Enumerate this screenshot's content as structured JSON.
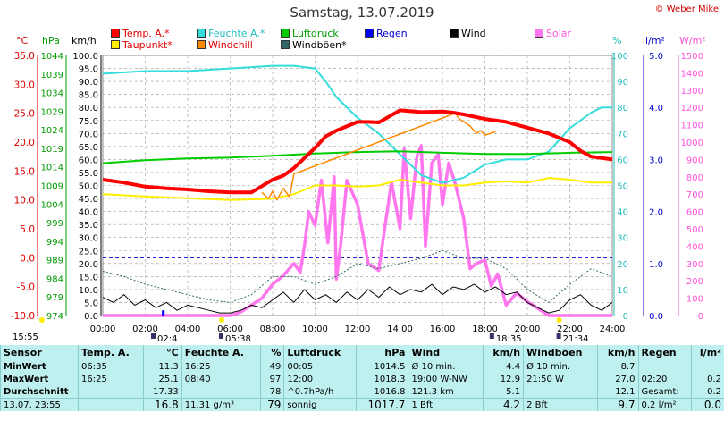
{
  "title": "Samstag, 13.07.2019",
  "credit": "© Weber Mike",
  "axis_headers": {
    "temp": "°C",
    "hpa": "hPa",
    "kmh": "km/h",
    "pct": "%",
    "rain": "l/m²",
    "solar": "W/m²"
  },
  "legend": [
    {
      "label": "Temp. A.*",
      "color": "#ff0000"
    },
    {
      "label": "Feuchte A.*",
      "color": "#33dddd"
    },
    {
      "label": "Luftdruck",
      "color": "#00cc00"
    },
    {
      "label": "Regen",
      "color": "#0000ff"
    },
    {
      "label": "Wind",
      "color": "#000000"
    },
    {
      "label": "Solar",
      "color": "#ff77ee"
    },
    {
      "label": "Taupunkt*",
      "color": "#ffee00"
    },
    {
      "label": "Windchill",
      "color": "#ff8800"
    },
    {
      "label": "Windböen*",
      "color": "#336666"
    }
  ],
  "chart_data": {
    "type": "line",
    "x_unit": "hours",
    "x_ticks": [
      "00:00",
      "02:00",
      "04:00",
      "06:00",
      "08:00",
      "10:00",
      "12:00",
      "14:00",
      "16:00",
      "18:00",
      "20:00",
      "22:00",
      "24:00"
    ],
    "axes": {
      "temp_c": {
        "ticks": [
          "35.0",
          "30.0",
          "25.0",
          "20.0",
          "15.0",
          "10.0",
          "5.0",
          "0.0",
          "-5.0",
          "-10.0"
        ],
        "range": [
          -10,
          35
        ],
        "color": "#dd0000"
      },
      "hpa": {
        "ticks": [
          "1044",
          "1039",
          "1034",
          "1029",
          "1024",
          "1019",
          "1014",
          "1009",
          "1004",
          "999",
          "994",
          "989",
          "984",
          "979",
          "974"
        ],
        "range": [
          974,
          1044
        ],
        "color": "#009900"
      },
      "kmh": {
        "ticks": [
          "100.0",
          "95.0",
          "90.0",
          "85.0",
          "80.0",
          "75.0",
          "70.0",
          "65.0",
          "60.0",
          "55.0",
          "50.0",
          "45.0",
          "40.0",
          "35.0",
          "30.0",
          "25.0",
          "20.0",
          "15.0",
          "10.0",
          "5.0",
          "0.0"
        ],
        "range": [
          0,
          100
        ],
        "color": "#000000"
      },
      "pct": {
        "ticks": [
          "100",
          "90",
          "80",
          "70",
          "60",
          "50",
          "40",
          "30",
          "20",
          "10",
          "0"
        ],
        "range": [
          0,
          100
        ],
        "color": "#22bbbb"
      },
      "rain": {
        "ticks": [
          "5.0",
          "4.0",
          "3.0",
          "2.0",
          "1.0",
          "0.0"
        ],
        "range": [
          0,
          5
        ],
        "color": "#0000cc"
      },
      "solar": {
        "ticks": [
          "1500",
          "1400",
          "1300",
          "1200",
          "1100",
          "1000",
          "900",
          "800",
          "700",
          "600",
          "500",
          "400",
          "300",
          "200",
          "100",
          "0"
        ],
        "range": [
          0,
          1500
        ],
        "color": "#ff55dd"
      }
    },
    "series": [
      {
        "name": "Temp. A.*",
        "axis": "temp_c",
        "x": [
          0,
          1,
          2,
          3,
          4,
          5,
          6,
          7,
          8,
          8.5,
          9,
          10,
          10.5,
          11,
          12,
          12.5,
          13,
          14,
          15,
          16,
          16.5,
          17,
          18,
          19,
          20,
          21,
          22,
          22.5,
          23,
          24
        ],
        "y": [
          13.5,
          13.0,
          12.3,
          12.0,
          11.8,
          11.5,
          11.3,
          11.3,
          13.5,
          14.2,
          15.5,
          19.0,
          21.0,
          22.0,
          23.5,
          23.5,
          23.4,
          25.5,
          25.2,
          25.3,
          25.1,
          24.8,
          24.0,
          23.5,
          22.5,
          21.5,
          20.0,
          18.5,
          17.5,
          17.0
        ]
      },
      {
        "name": "Feuchte A.*",
        "axis": "pct",
        "x": [
          0,
          2,
          4,
          6,
          8,
          9,
          10,
          10.5,
          11,
          12,
          13,
          14,
          15,
          16,
          17,
          18,
          19,
          20,
          21,
          22,
          23,
          23.5,
          24
        ],
        "y": [
          93,
          94,
          94,
          95,
          96,
          96,
          95,
          90,
          84,
          76,
          70,
          62,
          54,
          51,
          53,
          58,
          60,
          60,
          63,
          72,
          78,
          80,
          80
        ]
      },
      {
        "name": "Luftdruck",
        "axis": "hpa",
        "x": [
          0,
          2,
          4,
          6,
          8,
          10,
          12,
          14,
          16,
          18,
          20,
          22,
          24
        ],
        "y": [
          1015.0,
          1015.8,
          1016.3,
          1016.5,
          1017.0,
          1017.6,
          1018.0,
          1018.2,
          1017.8,
          1017.5,
          1017.5,
          1017.8,
          1018.0
        ]
      },
      {
        "name": "Taupunkt*",
        "axis": "temp_c",
        "x": [
          0,
          2,
          4,
          6,
          8,
          9,
          10,
          11,
          12,
          13,
          14,
          15,
          16,
          17,
          18,
          19,
          20,
          21,
          22,
          23,
          24
        ],
        "y": [
          11.0,
          10.6,
          10.3,
          10.0,
          10.2,
          11.0,
          12.5,
          12.5,
          12.3,
          12.5,
          13.5,
          13.0,
          12.5,
          12.5,
          13.0,
          13.2,
          13.0,
          13.8,
          13.5,
          13.0,
          13.0
        ]
      },
      {
        "name": "Windchill",
        "axis": "temp_c",
        "x": [
          7.5,
          7.8,
          8.0,
          8.2,
          8.5,
          8.8,
          9.0,
          16.6,
          16.8,
          17.0,
          17.3,
          17.6,
          17.8,
          18.0,
          18.5
        ],
        "y": [
          11.3,
          10.2,
          11.5,
          10.0,
          12.0,
          10.5,
          14.5,
          25.0,
          24.0,
          23.5,
          22.8,
          21.5,
          22.0,
          21.2,
          21.8
        ]
      },
      {
        "name": "Windböen*",
        "axis": "kmh",
        "x": [
          0,
          1,
          2,
          3,
          4,
          5,
          6,
          7,
          8,
          9,
          10,
          11,
          12,
          13,
          14,
          15,
          16,
          17,
          18,
          19,
          20,
          21,
          22,
          23,
          24
        ],
        "y": [
          17,
          15,
          12,
          10,
          8,
          6,
          5,
          8,
          15,
          15,
          12,
          15,
          20,
          18,
          20,
          22,
          25,
          22,
          22,
          18,
          10,
          5,
          12,
          18,
          15
        ]
      },
      {
        "name": "Wind",
        "axis": "kmh",
        "x": [
          0,
          0.5,
          1,
          1.5,
          2,
          2.5,
          3,
          3.5,
          4,
          4.5,
          5,
          5.5,
          6,
          6.5,
          7,
          7.5,
          8,
          8.5,
          9,
          9.5,
          10,
          10.5,
          11,
          11.5,
          12,
          12.5,
          13,
          13.5,
          14,
          14.5,
          15,
          15.5,
          16,
          16.5,
          17,
          17.5,
          18,
          18.5,
          19,
          19.5,
          20,
          20.5,
          21,
          21.5,
          22,
          22.5,
          23,
          23.5,
          24
        ],
        "y": [
          7,
          5,
          8,
          4,
          6,
          3,
          5,
          2,
          4,
          3,
          2,
          1,
          1,
          2,
          4,
          3,
          6,
          9,
          5,
          10,
          6,
          8,
          5,
          9,
          6,
          10,
          7,
          11,
          8,
          10,
          9,
          12,
          8,
          11,
          10,
          12,
          9,
          11,
          8,
          9,
          5,
          3,
          1,
          2,
          6,
          8,
          4,
          2,
          5
        ]
      },
      {
        "name": "Solar",
        "axis": "solar",
        "x": [
          0,
          6,
          6.5,
          7,
          7.5,
          8,
          8.5,
          9,
          9.3,
          9.5,
          9.7,
          10,
          10.3,
          10.6,
          10.9,
          11,
          11.2,
          11.5,
          12,
          12.5,
          13,
          13.3,
          13.6,
          14,
          14.2,
          14.5,
          14.8,
          15,
          15.2,
          15.5,
          15.8,
          16,
          16.3,
          16.6,
          17,
          17.3,
          17.6,
          18,
          18.3,
          18.6,
          19,
          19.5,
          20,
          20.5,
          21,
          24
        ],
        "y": [
          0,
          0,
          20,
          60,
          100,
          180,
          230,
          300,
          250,
          400,
          600,
          520,
          780,
          420,
          800,
          210,
          400,
          780,
          640,
          300,
          260,
          520,
          770,
          500,
          960,
          560,
          920,
          980,
          400,
          880,
          930,
          640,
          880,
          760,
          560,
          270,
          300,
          320,
          170,
          240,
          60,
          130,
          80,
          40,
          0,
          0
        ]
      },
      {
        "name": "Regen",
        "axis": "rain",
        "x": [
          2.85
        ],
        "y": [
          0.1
        ]
      }
    ],
    "markers": {
      "x_bottom_labels": [
        {
          "x": 2.4,
          "text": "02:4"
        },
        {
          "x": 5.6,
          "text": "05:38"
        },
        {
          "x": 18.35,
          "text": "18:35"
        },
        {
          "x": 21.5,
          "text": "21:34"
        }
      ],
      "left_label": "15:55"
    }
  },
  "stats": {
    "header": [
      "Sensor",
      "Temp. A.",
      "°C",
      "Feuchte A.",
      "%",
      "Luftdruck",
      "hPa",
      "Wind",
      "km/h",
      "Windböen",
      "km/h",
      "Regen",
      "l/m²"
    ],
    "rows": [
      [
        "MinWert",
        "06:35",
        "11.3",
        "16:25",
        "49",
        "00:05",
        "1014.5",
        "Ø 10 min.",
        "4.4",
        "Ø 10 min.",
        "8.7",
        "",
        ""
      ],
      [
        "MaxWert",
        "16:25",
        "25.1",
        "08:40",
        "97",
        "12:00",
        "1018.3",
        "19:00  W-NW",
        "12.9",
        "21:50  W",
        "27.0",
        "02:20",
        "0.2"
      ],
      [
        "Durchschnitt",
        "",
        "17.33",
        "",
        "78",
        "^0.7hPa/h",
        "1016.8",
        "121.3 km",
        "5.1",
        "",
        "12.1",
        "Gesamt:",
        "0.2"
      ],
      [
        "13.07. 23:55",
        "",
        "16.8",
        "11.31 g/m³",
        "79",
        "sonnig",
        "1017.7",
        "1 Bft",
        "4.2",
        "2 Bft",
        "9.7",
        "0.2 l/m²",
        "0.0"
      ]
    ]
  }
}
